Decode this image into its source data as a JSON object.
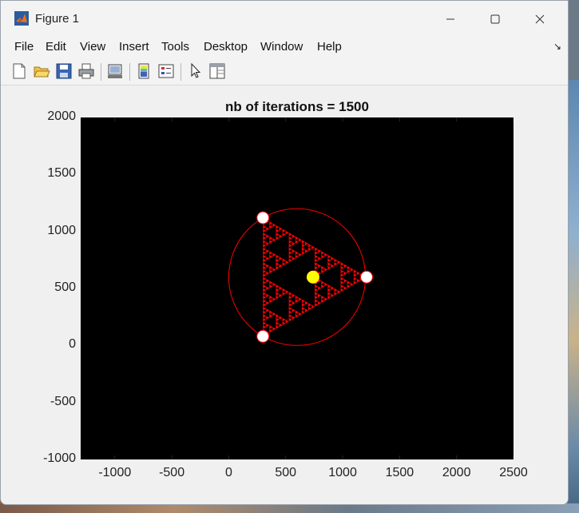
{
  "window": {
    "title": "Figure 1",
    "icon": "matlab-icon"
  },
  "menu": [
    "File",
    "Edit",
    "View",
    "Insert",
    "Tools",
    "Desktop",
    "Window",
    "Help"
  ],
  "toolbar": [
    "new-figure-icon",
    "open-file-icon",
    "save-icon",
    "print-icon",
    "link-plot-icon",
    "colorbar-icon",
    "legend-icon",
    "edit-plot-icon",
    "property-editor-icon"
  ],
  "chart_data": {
    "type": "scatter",
    "title": "nb of iterations = 1500",
    "xlim": [
      -1300,
      2500
    ],
    "ylim": [
      -1000,
      2000
    ],
    "xticks": [
      "-1000",
      "-500",
      "0",
      "500",
      "1000",
      "1500",
      "2000",
      "2500"
    ],
    "yticks": [
      "2000",
      "1500",
      "1000",
      "500",
      "0",
      "-500",
      "-1000"
    ],
    "background": "#000000",
    "circle": {
      "center": [
        600,
        600
      ],
      "radius": 600,
      "color": "#ff0000"
    },
    "vertices": [
      [
        300,
        1120
      ],
      [
        1210,
        600
      ],
      [
        300,
        80
      ]
    ],
    "vertex_color": "#ffffff",
    "current_point": [
      740,
      600
    ],
    "current_point_color": "#ffff00",
    "fractal": "sierpinski-triangle",
    "fractal_color": "#ff0000"
  }
}
